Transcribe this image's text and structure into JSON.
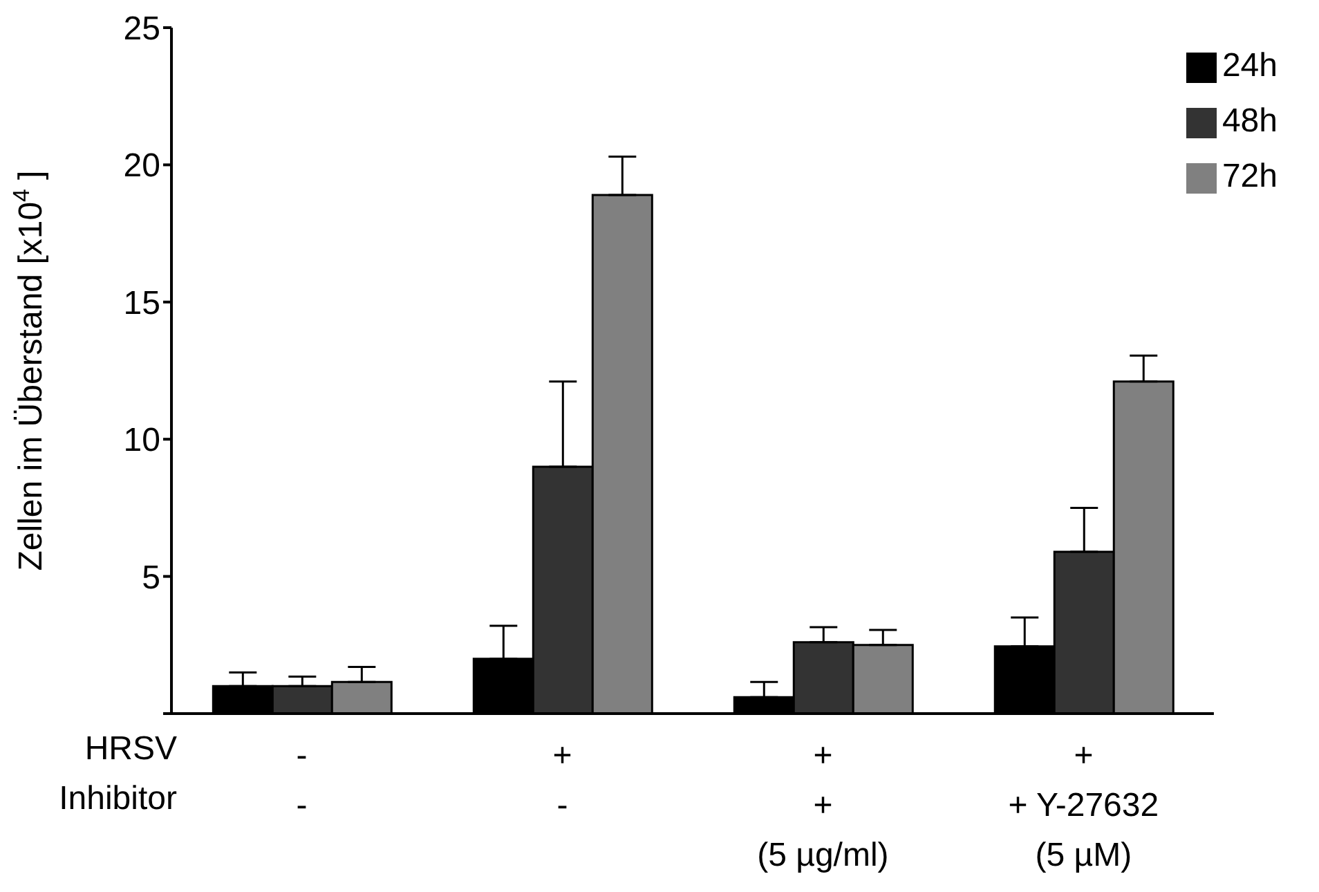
{
  "chart_data": {
    "type": "bar",
    "ylabel": "Zellen im Überstand [x10$^{4}$ ]",
    "xlabel": "HRSV\nInhibitor",
    "categories": [
      "-\n-",
      "+\n-",
      "+\n+\n(5 µg/ml)",
      "+\n+ Y-27632\n(5 µM)"
    ],
    "series": [
      {
        "name": "24h",
        "color": "#000000",
        "values": [
          1.0,
          2.0,
          0.6,
          2.45
        ],
        "errors": [
          0.5,
          1.2,
          0.55,
          1.05
        ]
      },
      {
        "name": "48h",
        "color": "#333333",
        "values": [
          1.0,
          9.0,
          2.6,
          5.9
        ],
        "errors": [
          0.35,
          3.1,
          0.55,
          1.6
        ]
      },
      {
        "name": "72h",
        "color": "#808080",
        "values": [
          1.15,
          18.9,
          2.5,
          12.1
        ],
        "errors": [
          0.55,
          1.4,
          0.55,
          0.95
        ]
      }
    ],
    "ylim": [
      0,
      25
    ],
    "yticks": [
      {
        "value": 0,
        "label": null
      },
      5,
      10,
      15,
      20,
      25
    ],
    "grid": false,
    "legend": "top right"
  }
}
